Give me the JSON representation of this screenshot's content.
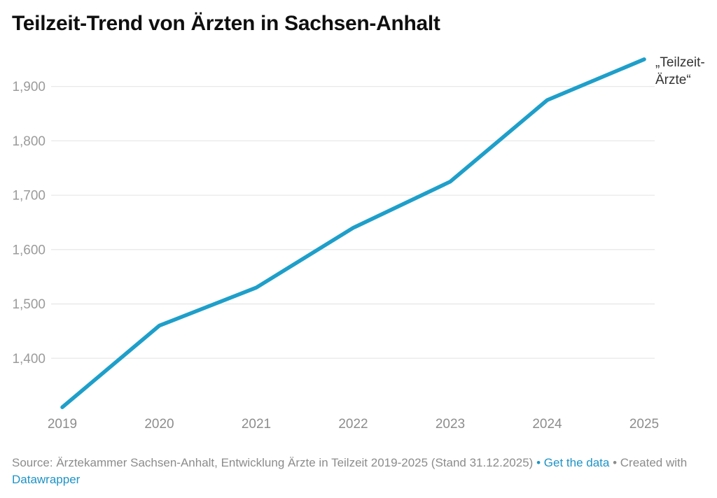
{
  "title": "Teilzeit-Trend von Ärzten in Sachsen-Anhalt",
  "chart_data": {
    "type": "line",
    "title": "Teilzeit-Trend von Ärzten in Sachsen-Anhalt",
    "xlabel": "",
    "ylabel": "",
    "x": [
      2019,
      2020,
      2021,
      2022,
      2023,
      2024,
      2025
    ],
    "x_tick_labels": [
      "2019",
      "2020",
      "2021",
      "2022",
      "2023",
      "2024",
      "2025"
    ],
    "series": [
      {
        "name": "„Teilzeit-Ärzte“",
        "label_lines": [
          "„Teilzeit-",
          "Ärzte“"
        ],
        "values": [
          1310,
          1460,
          1530,
          1640,
          1725,
          1875,
          1950
        ]
      }
    ],
    "ylim": [
      1300,
      1960
    ],
    "yticks": [
      {
        "value": 1400,
        "label": "1,400"
      },
      {
        "value": 1500,
        "label": "1,500"
      },
      {
        "value": 1600,
        "label": "1,600"
      },
      {
        "value": 1700,
        "label": "1,700"
      },
      {
        "value": 1800,
        "label": "1,800"
      },
      {
        "value": 1900,
        "label": "1,900"
      }
    ],
    "grid": "horizontal",
    "legend_position": "line-end-label"
  },
  "colors": {
    "line": "#1e9fca",
    "grid": "#e8e8e8",
    "y_tick_text": "#9b9b9b",
    "x_tick_text": "#8d8d8d",
    "series_label": "#333333",
    "title_text": "#0f0f0f",
    "footer_text": "#8c8c8c",
    "link": "#1e93c6",
    "background": "#ffffff"
  },
  "footer": {
    "source_label": "Source:",
    "source_text": "Ärztekammer Sachsen-Anhalt, Entwicklung Ärzte in Teilzeit 2019-2025 (Stand 31.12.2025)",
    "separator": "•",
    "get_data_link": "Get the data",
    "created_text": "Created with",
    "datawrapper_link": "Datawrapper"
  }
}
